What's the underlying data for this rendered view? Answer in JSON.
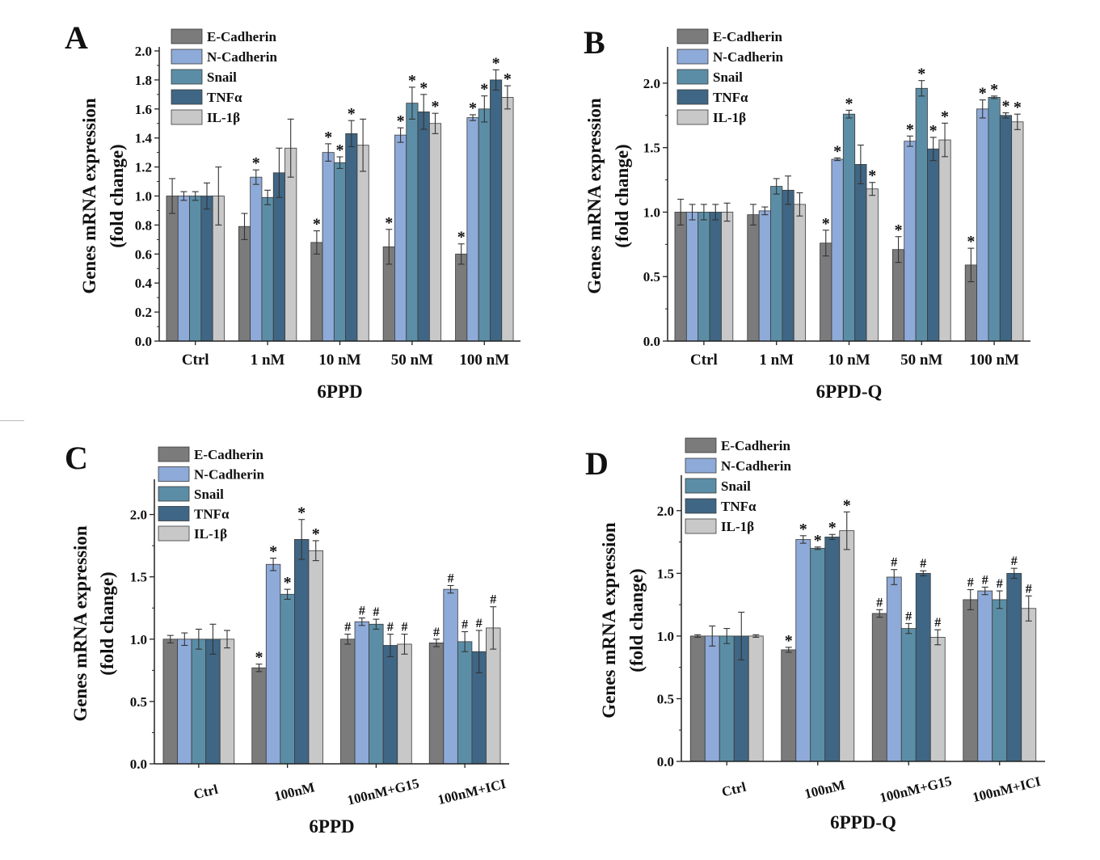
{
  "colors": {
    "E-Cadherin": "#7b7b7b",
    "N-Cadherin": "#8eaad8",
    "Snail": "#5b8ea6",
    "TNFa": "#3f6684",
    "IL-1b": "#c8c8c8",
    "error": "#333333",
    "axis": "#222222"
  },
  "chart_data": [
    {
      "panel": "A",
      "type": "bar",
      "xlabel": "6PPD",
      "ylabel_line1": "Genes mRNA expression",
      "ylabel_line2": "(fold change)",
      "ylim": [
        0,
        2.0
      ],
      "yticks": [
        "0.0",
        "0.2",
        "0.4",
        "0.6",
        "0.8",
        "1.0",
        "1.2",
        "1.4",
        "1.6",
        "1.8",
        "2.0"
      ],
      "tick_step": 0.2,
      "legend_position": "top-left",
      "rotate_categories": false,
      "categories": [
        "Ctrl",
        "1 nM",
        "10 nM",
        "50 nM",
        "100 nM"
      ],
      "series": [
        {
          "name": "E-Cadherin",
          "values": [
            1.0,
            0.79,
            0.68,
            0.65,
            0.6
          ],
          "errors": [
            0.12,
            0.09,
            0.08,
            0.12,
            0.07
          ],
          "marks": [
            "",
            "",
            "*",
            "*",
            "*"
          ]
        },
        {
          "name": "N-Cadherin",
          "values": [
            1.0,
            1.13,
            1.3,
            1.42,
            1.54
          ],
          "errors": [
            0.03,
            0.05,
            0.06,
            0.05,
            0.02
          ],
          "marks": [
            "",
            "*",
            "*",
            "*",
            "*"
          ]
        },
        {
          "name": "Snail",
          "values": [
            1.0,
            0.99,
            1.23,
            1.64,
            1.6
          ],
          "errors": [
            0.03,
            0.05,
            0.04,
            0.11,
            0.09
          ],
          "marks": [
            "",
            "",
            "*",
            "*",
            "*"
          ]
        },
        {
          "name": "TNFα",
          "values": [
            1.0,
            1.16,
            1.43,
            1.58,
            1.8
          ],
          "errors": [
            0.09,
            0.17,
            0.09,
            0.12,
            0.07
          ],
          "marks": [
            "",
            "",
            "*",
            "*",
            "*"
          ]
        },
        {
          "name": "IL-1β",
          "values": [
            1.0,
            1.33,
            1.35,
            1.5,
            1.68
          ],
          "errors": [
            0.2,
            0.2,
            0.18,
            0.07,
            0.08
          ],
          "marks": [
            "",
            "",
            "",
            "*",
            "*"
          ]
        }
      ]
    },
    {
      "panel": "B",
      "type": "bar",
      "xlabel": "6PPD-Q",
      "ylabel_line1": "Genes mRNA expression",
      "ylabel_line2": "(fold change)",
      "ylim": [
        0,
        2.25
      ],
      "yticks": [
        "0.0",
        "0.5",
        "1.0",
        "1.5",
        "2.0"
      ],
      "tick_step": 0.5,
      "legend_position": "top-left",
      "rotate_categories": false,
      "categories": [
        "Ctrl",
        "1 nM",
        "10 nM",
        "50 nM",
        "100 nM"
      ],
      "series": [
        {
          "name": "E-Cadherin",
          "values": [
            1.0,
            0.98,
            0.76,
            0.71,
            0.59
          ],
          "errors": [
            0.1,
            0.08,
            0.1,
            0.1,
            0.13
          ],
          "marks": [
            "",
            "",
            "*",
            "*",
            "*"
          ]
        },
        {
          "name": "N-Cadherin",
          "values": [
            1.0,
            1.01,
            1.41,
            1.55,
            1.8
          ],
          "errors": [
            0.06,
            0.03,
            0.01,
            0.04,
            0.07
          ],
          "marks": [
            "",
            "",
            "*",
            "*",
            "*"
          ]
        },
        {
          "name": "Snail",
          "values": [
            1.0,
            1.2,
            1.76,
            1.96,
            1.89
          ],
          "errors": [
            0.06,
            0.06,
            0.03,
            0.06,
            0.01
          ],
          "marks": [
            "",
            "",
            "*",
            "*",
            "*"
          ]
        },
        {
          "name": "TNFα",
          "values": [
            1.0,
            1.17,
            1.37,
            1.49,
            1.75
          ],
          "errors": [
            0.06,
            0.11,
            0.15,
            0.09,
            0.02
          ],
          "marks": [
            "",
            "",
            "",
            "*",
            "*"
          ]
        },
        {
          "name": "IL-1β",
          "values": [
            1.0,
            1.06,
            1.18,
            1.56,
            1.7
          ],
          "errors": [
            0.07,
            0.09,
            0.05,
            0.13,
            0.06
          ],
          "marks": [
            "",
            "",
            "*",
            "*",
            "*"
          ]
        }
      ]
    },
    {
      "panel": "C",
      "type": "bar",
      "xlabel": "6PPD",
      "ylabel_line1": "Genes mRNA expression",
      "ylabel_line2": "(fold change)",
      "ylim": [
        0,
        2.25
      ],
      "yticks": [
        "0.0",
        "0.5",
        "1.0",
        "1.5",
        "2.0"
      ],
      "tick_step": 0.5,
      "legend_position": "top-left",
      "rotate_categories": true,
      "categories": [
        "Ctrl",
        "100nM",
        "100nM+G15",
        "100nM+ICI"
      ],
      "series": [
        {
          "name": "E-Cadherin",
          "values": [
            1.0,
            0.77,
            1.0,
            0.97
          ],
          "errors": [
            0.03,
            0.03,
            0.04,
            0.03
          ],
          "marks": [
            "",
            "*",
            "#",
            "#"
          ]
        },
        {
          "name": "N-Cadherin",
          "values": [
            1.0,
            1.6,
            1.14,
            1.4
          ],
          "errors": [
            0.05,
            0.05,
            0.03,
            0.03
          ],
          "marks": [
            "",
            "*",
            "#",
            "#"
          ]
        },
        {
          "name": "Snail",
          "values": [
            1.0,
            1.36,
            1.12,
            0.98
          ],
          "errors": [
            0.08,
            0.04,
            0.04,
            0.08
          ],
          "marks": [
            "",
            "*",
            "#",
            "#"
          ]
        },
        {
          "name": "TNFα",
          "values": [
            1.0,
            1.8,
            0.95,
            0.9
          ],
          "errors": [
            0.12,
            0.16,
            0.09,
            0.17
          ],
          "marks": [
            "",
            "*",
            "#",
            "#"
          ]
        },
        {
          "name": "IL-1β",
          "values": [
            1.0,
            1.71,
            0.96,
            1.09
          ],
          "errors": [
            0.07,
            0.08,
            0.08,
            0.17
          ],
          "marks": [
            "",
            "*",
            "#",
            "#"
          ]
        }
      ]
    },
    {
      "panel": "D",
      "type": "bar",
      "xlabel": "6PPD-Q",
      "ylabel_line1": "Genes mRNA expression",
      "ylabel_line2": "(fold change)",
      "ylim": [
        0,
        2.25
      ],
      "yticks": [
        "0.0",
        "0.5",
        "1.0",
        "1.5",
        "2.0"
      ],
      "tick_step": 0.5,
      "legend_position": "top-left",
      "rotate_categories": true,
      "categories": [
        "Ctrl",
        "100nM",
        "100nM+G15",
        "100nM+ICI"
      ],
      "series": [
        {
          "name": "E-Cadherin",
          "values": [
            1.0,
            0.89,
            1.18,
            1.29
          ],
          "errors": [
            0.01,
            0.02,
            0.03,
            0.08
          ],
          "marks": [
            "",
            "*",
            "#",
            "#"
          ]
        },
        {
          "name": "N-Cadherin",
          "values": [
            1.0,
            1.77,
            1.47,
            1.36
          ],
          "errors": [
            0.08,
            0.03,
            0.06,
            0.03
          ],
          "marks": [
            "",
            "*",
            "#",
            "#"
          ]
        },
        {
          "name": "Snail",
          "values": [
            1.0,
            1.7,
            1.06,
            1.29
          ],
          "errors": [
            0.06,
            0.01,
            0.04,
            0.07
          ],
          "marks": [
            "",
            "*",
            "#",
            "#"
          ]
        },
        {
          "name": "TNFα",
          "values": [
            1.0,
            1.79,
            1.5,
            1.5
          ],
          "errors": [
            0.19,
            0.02,
            0.02,
            0.04
          ],
          "marks": [
            "",
            "*",
            "#",
            "#"
          ]
        },
        {
          "name": "IL-1β",
          "values": [
            1.0,
            1.84,
            0.99,
            1.22
          ],
          "errors": [
            0.01,
            0.15,
            0.06,
            0.1
          ],
          "marks": [
            "",
            "*",
            "#",
            "#"
          ]
        }
      ]
    }
  ]
}
